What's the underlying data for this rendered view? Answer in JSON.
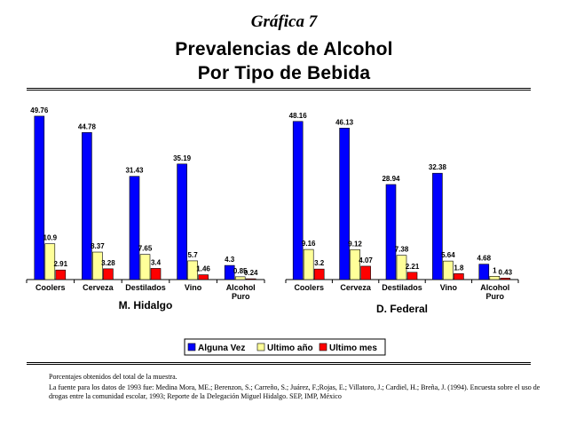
{
  "header": {
    "figure_label": "Gráfica 7",
    "title_line1": "Prevalencias de Alcohol",
    "title_line2": "Por Tipo de Bebida"
  },
  "footnotes": {
    "line1": "Porcentajes obtenidos del total de la muestra.",
    "line2": "La fuente para los datos de 1993 fue: Medina Mora, ME.; Berenzon, S.; Carreño, S.; Juárez, F.;Rojas, E.; Villatoro, J.; Cardiel, H.; Breña, J. (1994). Encuesta sobre el uso de drogas entre la comunidad escolar, 1993; Reporte de la Delegación Miguel Hidalgo. SEP, IMP, México"
  },
  "chart_data": [
    {
      "type": "bar",
      "group_label": "M. Hidalgo",
      "categories": [
        "Coolers",
        "Cerveza",
        "Destilados",
        "Vino",
        "Alcohol Puro"
      ],
      "series": [
        {
          "name": "Alguna Vez",
          "color": "#0000ff",
          "values": [
            49.76,
            44.78,
            31.43,
            35.19,
            4.3
          ],
          "labels": [
            "49.76",
            "44.78",
            "31.43",
            "35.19",
            "4.3"
          ]
        },
        {
          "name": "Ultimo año",
          "color": "#ffff99",
          "values": [
            10.9,
            8.37,
            7.65,
            5.7,
            0.85
          ],
          "labels": [
            "10.9",
            "8.37",
            "7.65",
            "5.7",
            "0.85"
          ]
        },
        {
          "name": "Ultimo mes",
          "color": "#ff0000",
          "values": [
            2.91,
            3.28,
            3.4,
            1.46,
            0.24
          ],
          "labels": [
            "2.91",
            "3.28",
            "3.4",
            "1.46",
            "0.24"
          ]
        }
      ],
      "ylim": [
        0,
        50
      ]
    },
    {
      "type": "bar",
      "group_label": "D. Federal",
      "categories": [
        "Coolers",
        "Cerveza",
        "Destilados",
        "Vino",
        "Alcohol Puro"
      ],
      "series": [
        {
          "name": "Alguna Vez",
          "color": "#0000ff",
          "values": [
            48.16,
            46.13,
            28.94,
            32.38,
            4.68
          ],
          "labels": [
            "48.16",
            "46.13",
            "28.94",
            "32.38",
            "4.68"
          ]
        },
        {
          "name": "Ultimo año",
          "color": "#ffff99",
          "values": [
            9.16,
            9.12,
            7.38,
            5.64,
            1
          ],
          "labels": [
            "9.16",
            "9.12",
            "7.38",
            "5.64",
            "1"
          ]
        },
        {
          "name": "Ultimo mes",
          "color": "#ff0000",
          "values": [
            3.2,
            4.07,
            2.21,
            1.8,
            0.43
          ],
          "labels": [
            "3.2",
            "4.07",
            "2.21",
            "1.8",
            "0.43"
          ]
        }
      ],
      "ylim": [
        0,
        50
      ]
    }
  ],
  "legend": {
    "placement": "bottom-center",
    "items": [
      {
        "label": "Alguna Vez",
        "color": "#0000ff"
      },
      {
        "label": "Ultimo año",
        "color": "#ffff99"
      },
      {
        "label": "Ultimo mes",
        "color": "#ff0000"
      }
    ]
  }
}
